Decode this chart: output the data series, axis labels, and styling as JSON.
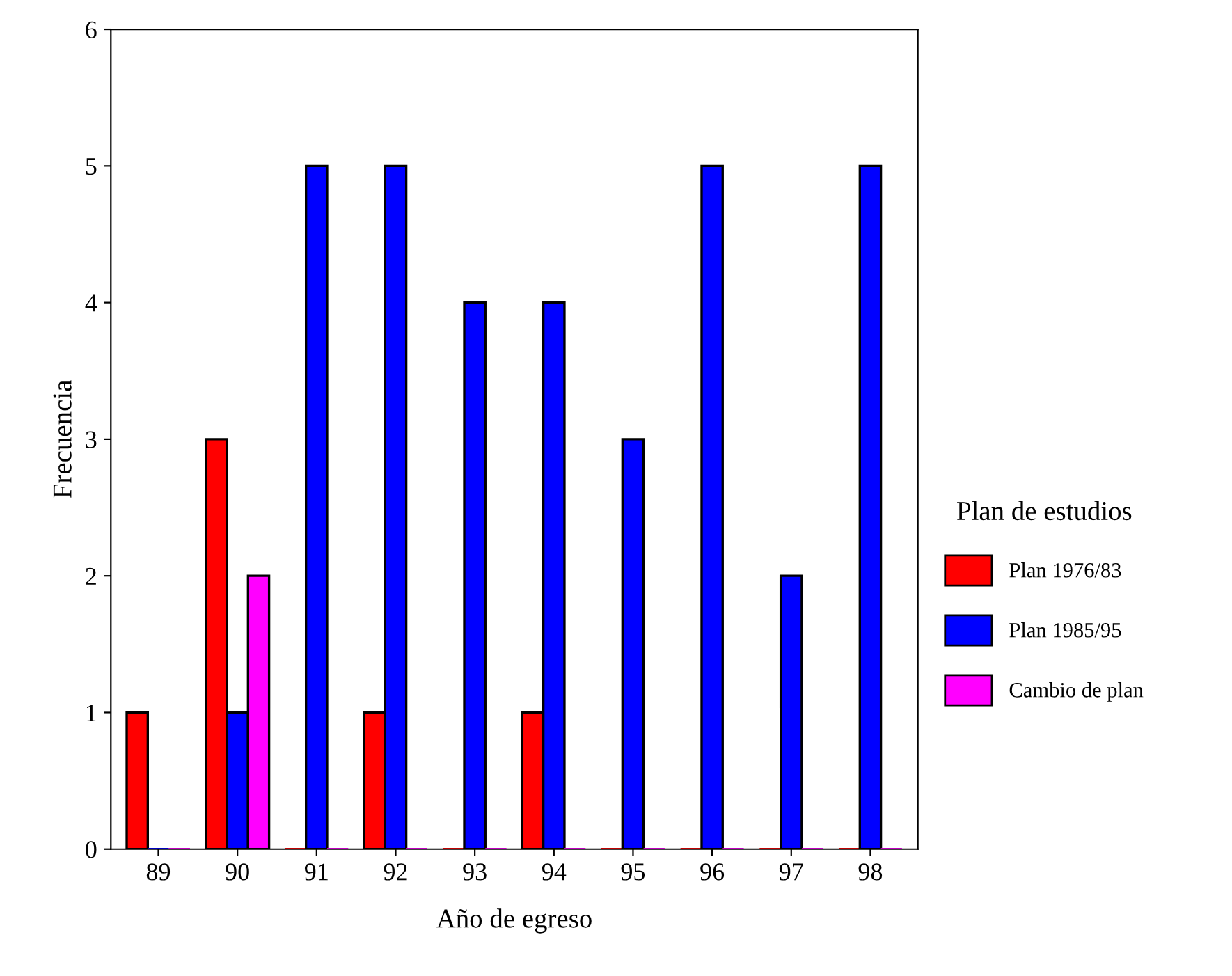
{
  "chart_data": {
    "type": "bar",
    "xlabel": "Año de egreso",
    "ylabel": "Frecuencia",
    "legend_title": "Plan de estudios",
    "categories": [
      "89",
      "90",
      "91",
      "92",
      "93",
      "94",
      "95",
      "96",
      "97",
      "98"
    ],
    "series": [
      {
        "name": "Plan 1976/83",
        "color": "#ff0000",
        "values": [
          1,
          3,
          0,
          1,
          0,
          1,
          0,
          0,
          0,
          0
        ]
      },
      {
        "name": "Plan 1985/95",
        "color": "#0000ff",
        "values": [
          0,
          1,
          5,
          5,
          4,
          4,
          3,
          5,
          2,
          5
        ]
      },
      {
        "name": "Cambio de plan",
        "color": "#ff00ff",
        "values": [
          0,
          2,
          0,
          0,
          0,
          0,
          0,
          0,
          0,
          0
        ]
      }
    ],
    "ylim": [
      0,
      6
    ],
    "yticks": [
      0,
      1,
      2,
      3,
      4,
      5,
      6
    ],
    "grid": false,
    "legend": "right"
  }
}
